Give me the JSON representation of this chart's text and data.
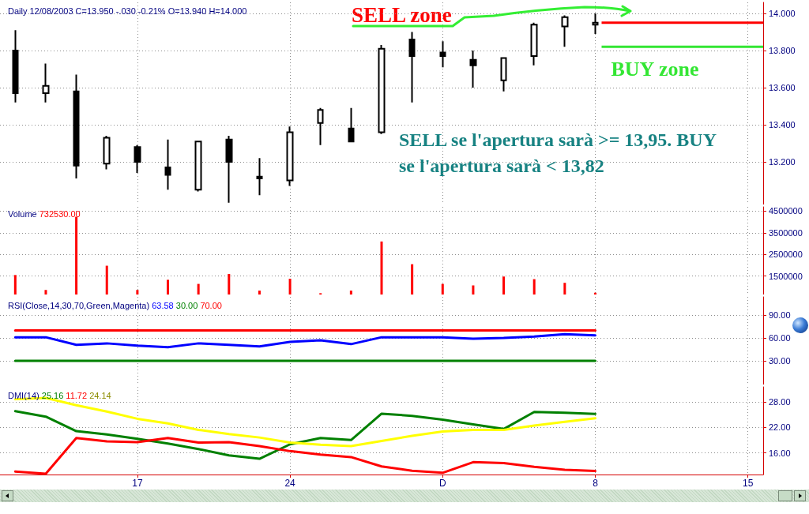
{
  "chart_data": [
    {
      "type": "candlestick",
      "title": "Daily 12/08/2003 C=13.950 -.030 -0.21% O=13.940 H=14.000",
      "categories": [
        null,
        null,
        null,
        null,
        null,
        null,
        null,
        null,
        null,
        null,
        null,
        null,
        null,
        null,
        null,
        null,
        null,
        null,
        null,
        null,
        null,
        null,
        null,
        null,
        null
      ],
      "ohlc": [
        [
          13.8,
          13.91,
          13.52,
          13.57
        ],
        [
          13.57,
          13.73,
          13.52,
          13.61
        ],
        [
          13.58,
          13.67,
          13.11,
          13.18
        ],
        [
          13.19,
          13.34,
          13.16,
          13.33
        ],
        [
          13.28,
          13.29,
          13.14,
          13.2
        ],
        [
          13.17,
          13.32,
          13.05,
          13.13
        ],
        [
          13.05,
          13.31,
          13.04,
          13.31
        ],
        [
          13.32,
          13.34,
          12.98,
          13.2
        ],
        [
          13.12,
          13.22,
          13.02,
          13.11
        ],
        [
          13.1,
          13.39,
          13.07,
          13.36
        ],
        [
          13.41,
          13.49,
          13.29,
          13.48
        ],
        [
          13.38,
          13.49,
          13.31,
          13.31
        ],
        [
          13.36,
          13.83,
          13.35,
          13.81
        ],
        [
          13.86,
          13.9,
          13.52,
          13.77
        ],
        [
          13.79,
          13.85,
          13.71,
          13.77
        ],
        [
          13.75,
          13.8,
          13.6,
          13.72
        ],
        [
          13.64,
          13.76,
          13.58,
          13.76
        ],
        [
          13.77,
          13.95,
          13.72,
          13.94
        ],
        [
          13.93,
          13.99,
          13.82,
          13.98
        ],
        [
          13.94,
          14.0,
          13.89,
          13.95
        ],
        null,
        null,
        null,
        null,
        null
      ],
      "color": "#000000",
      "ylim": [
        12.97,
        14.06
      ],
      "yticks": [
        {
          "value": 13.2,
          "label": "13.200"
        },
        {
          "value": 13.4,
          "label": "13.400"
        },
        {
          "value": 13.6,
          "label": "13.600"
        },
        {
          "value": 13.8,
          "label": "13.800"
        },
        {
          "value": 14,
          "label": "14.000"
        }
      ],
      "grid": true,
      "tick_labels": "y",
      "ref_lines": [
        {
          "axis": "y",
          "value": 13.95,
          "color": "#ff0000"
        },
        {
          "axis": "y",
          "value": 13.82,
          "color": "#33e633",
          "label": "BUY zone"
        }
      ],
      "annotations": [
        "SELL zone",
        "SELL se l'apertura sarà >= 13,95. BUY se l'apertura sarà < 13,82"
      ]
    },
    {
      "type": "bar",
      "title": "Volume 732530.00",
      "categories": [
        null,
        null,
        null,
        null,
        null,
        null,
        null,
        null,
        null,
        null,
        null,
        null,
        null,
        null,
        null,
        null,
        null,
        null,
        null,
        null,
        null,
        null,
        null,
        null,
        null
      ],
      "values": [
        1550000,
        860000,
        4240000,
        1980000,
        860000,
        1330000,
        1140000,
        1600000,
        830000,
        1380000,
        710000,
        830000,
        3100000,
        2050000,
        1140000,
        1070000,
        1480000,
        1360000,
        1190000,
        732530,
        null,
        null,
        null,
        null,
        null
      ],
      "color": "#ff0000",
      "ylim": [
        650000,
        4700000
      ],
      "yticks": [
        1500000,
        2500000,
        3500000,
        4500000
      ],
      "grid": true,
      "tick_labels": "y"
    },
    {
      "type": "line",
      "title": "RSI(Close,14,30,70,Green,Magenta) 63.58 30.00 70.00",
      "categories": [
        null,
        null,
        null,
        null,
        null,
        null,
        null,
        null,
        null,
        null,
        null,
        null,
        null,
        null,
        null,
        null,
        null,
        null,
        null,
        null,
        null,
        null,
        null,
        null,
        null
      ],
      "series": [
        {
          "color": "#0000ff",
          "values": [
            61,
            61,
            51,
            53,
            50,
            48,
            53,
            51,
            49,
            55,
            57,
            52,
            61,
            61,
            61,
            59,
            60,
            62,
            65,
            63.58,
            null,
            null,
            null,
            null,
            null
          ]
        },
        {
          "color": "#008000",
          "values": [
            30,
            30,
            30,
            30,
            30,
            30,
            30,
            30,
            30,
            30,
            30,
            30,
            30,
            30,
            30,
            30,
            30,
            30,
            30,
            30,
            null,
            null,
            null,
            null,
            null
          ]
        },
        {
          "color": "#ff0000",
          "values": [
            70,
            70,
            70,
            70,
            70,
            70,
            70,
            70,
            70,
            70,
            70,
            70,
            70,
            70,
            70,
            70,
            70,
            70,
            70,
            70,
            null,
            null,
            null,
            null,
            null
          ]
        }
      ],
      "ylim": [
        -1,
        114
      ],
      "yticks": [
        {
          "value": 30,
          "label": "30.00"
        },
        {
          "value": 60,
          "label": "60.00"
        },
        {
          "value": 90,
          "label": "90.00"
        }
      ],
      "grid": true,
      "tick_labels": "y",
      "marker": "none"
    },
    {
      "type": "line",
      "title": "DMI(14) 25.16 11.72 24.14",
      "categories": [
        null,
        null,
        null,
        null,
        "17",
        null,
        null,
        null,
        null,
        "24",
        null,
        null,
        null,
        null,
        "D",
        null,
        null,
        null,
        null,
        "8",
        null,
        null,
        null,
        null,
        "15"
      ],
      "series": [
        {
          "color": "#008000",
          "values": [
            25.8,
            24.5,
            21.1,
            20.3,
            19.3,
            18.2,
            16.9,
            15.4,
            14.6,
            18.0,
            19.5,
            19.0,
            25.2,
            24.7,
            23.8,
            22.7,
            21.6,
            25.6,
            25.4,
            25.16,
            null,
            null,
            null,
            null,
            null
          ]
        },
        {
          "color": "#ff0000",
          "values": [
            11.6,
            11.1,
            19.5,
            18.7,
            18.5,
            19.5,
            18.4,
            18.5,
            17.6,
            16.4,
            15.6,
            15.0,
            12.8,
            11.8,
            11.3,
            13.8,
            13.6,
            12.7,
            12.0,
            11.72,
            null,
            null,
            null,
            null,
            null
          ]
        },
        {
          "color": "#ffff00",
          "values": [
            28.6,
            28.9,
            27.2,
            25.7,
            24.0,
            22.9,
            21.4,
            20.4,
            19.6,
            18.4,
            17.9,
            17.6,
            18.8,
            20.0,
            21.0,
            21.4,
            21.4,
            22.4,
            23.3,
            24.14,
            null,
            null,
            null,
            null,
            null
          ]
        }
      ],
      "ylim": [
        10.9,
        31.5
      ],
      "yticks": [
        {
          "value": 16,
          "label": "16.00"
        },
        {
          "value": 22,
          "label": "22.00"
        },
        {
          "value": 28,
          "label": "28.00"
        }
      ],
      "grid": true,
      "marker": "none"
    }
  ]
}
